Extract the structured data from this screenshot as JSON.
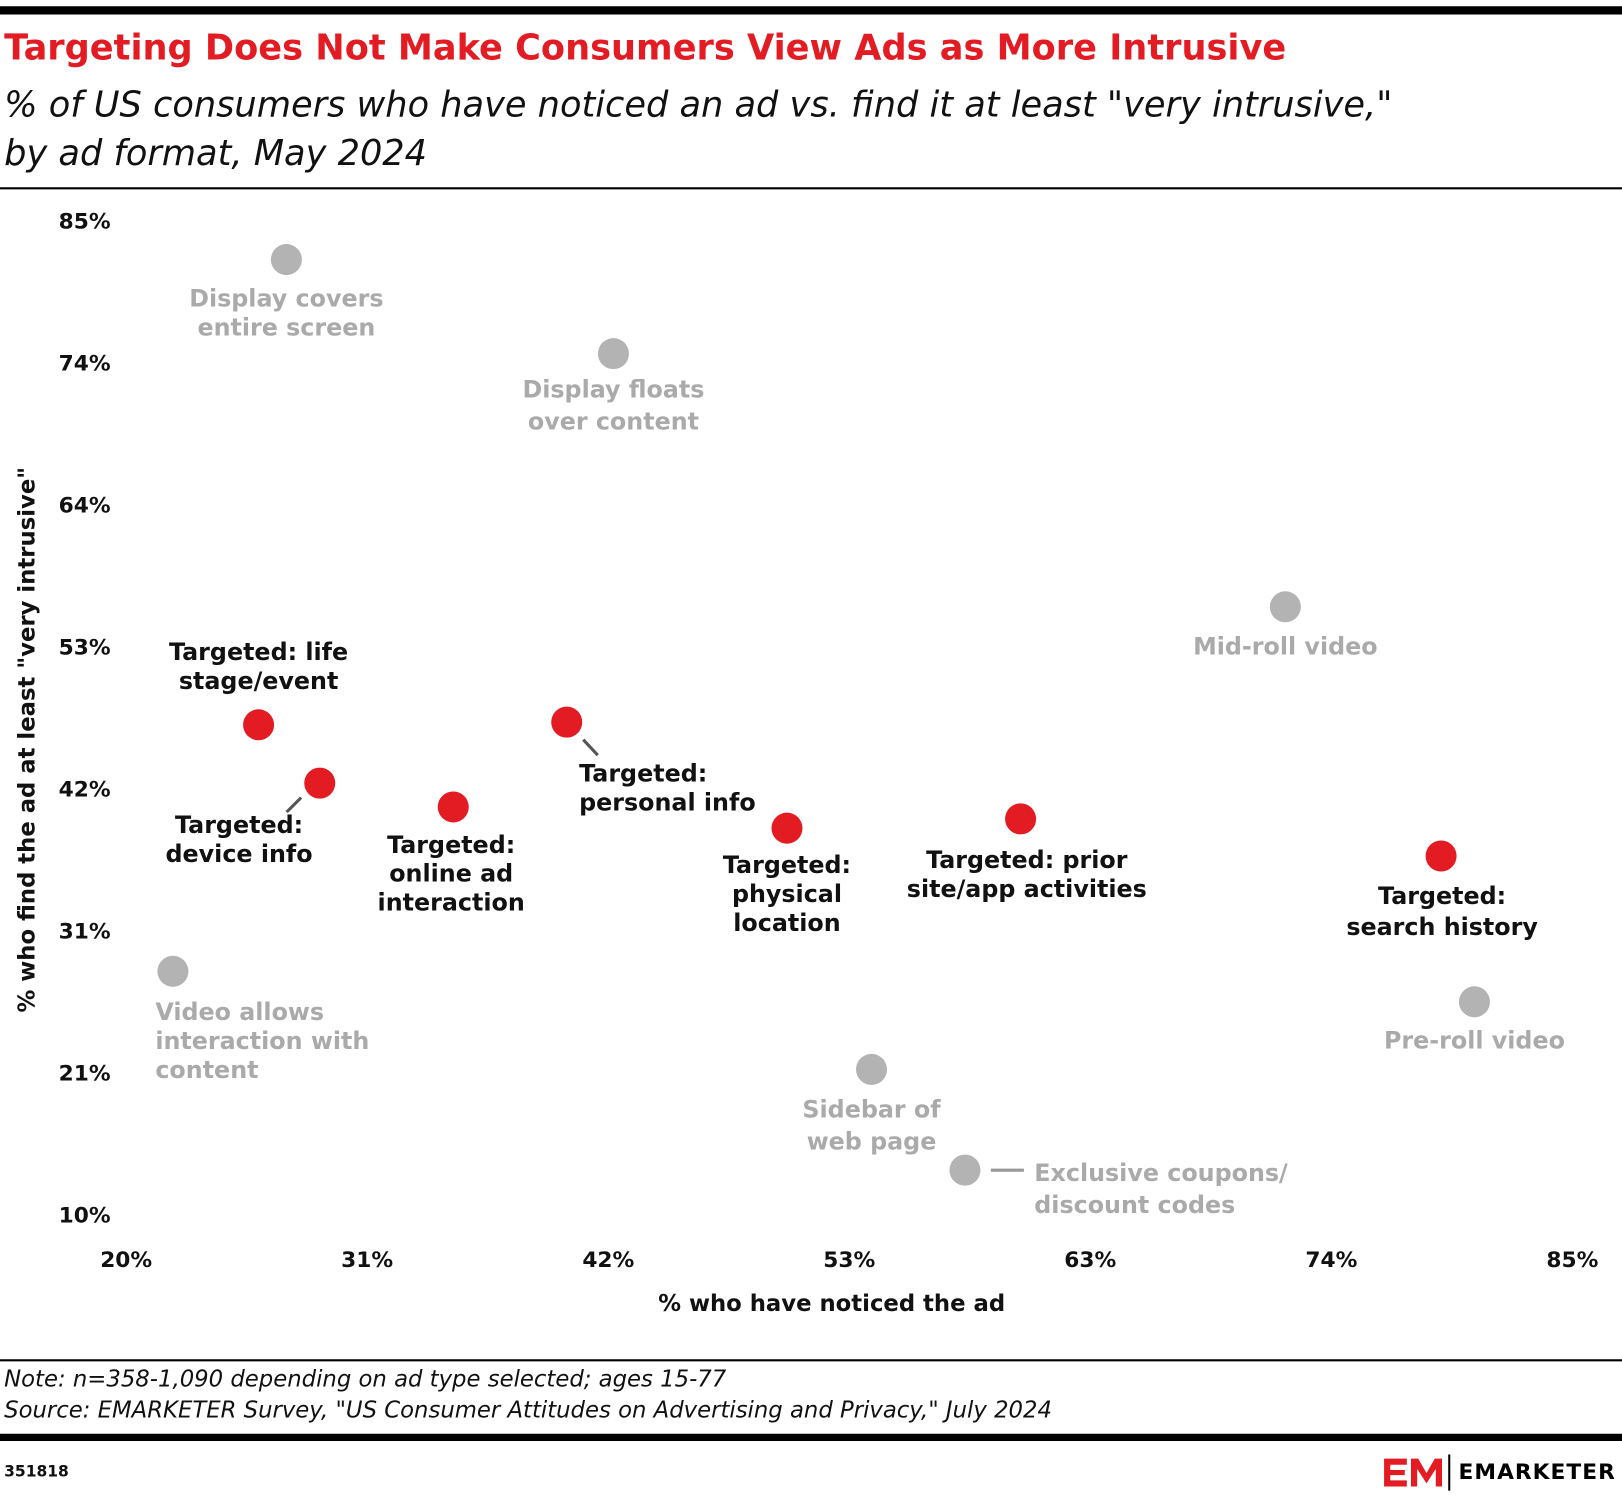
{
  "chart_data": {
    "type": "scatter",
    "title": "Targeting Does Not Make Consumers View Ads as More Intrusive",
    "subtitle": [
      "% of US consumers who have noticed an ad vs. find it at least \"very intrusive,\"",
      "by ad format, May 2024"
    ],
    "x_label": "% who have noticed the ad",
    "y_label": "% who find the ad at least \"very intrusive\"",
    "xlim": [
      20,
      85
    ],
    "xticks": [
      {
        "value": 20,
        "label": "20%"
      },
      {
        "value": 30.83,
        "label": "31%"
      },
      {
        "value": 41.67,
        "label": "42%"
      },
      {
        "value": 52.5,
        "label": "53%"
      },
      {
        "value": 63.33,
        "label": "63%"
      },
      {
        "value": 74.17,
        "label": "74%"
      },
      {
        "value": 85,
        "label": "85%"
      }
    ],
    "ylim": [
      10,
      85
    ],
    "yticks": [
      {
        "value": 10,
        "label": "10%"
      },
      {
        "value": 20.71,
        "label": "21%"
      },
      {
        "value": 31.43,
        "label": "31%"
      },
      {
        "value": 42.14,
        "label": "42%"
      },
      {
        "value": 52.86,
        "label": "53%"
      },
      {
        "value": 63.57,
        "label": "64%"
      },
      {
        "value": 74.29,
        "label": "74%"
      },
      {
        "value": 85,
        "label": "85%"
      }
    ],
    "points": [
      {
        "label": [
          "Display covers",
          "entire screen"
        ],
        "x": 27.2,
        "y": 82.2,
        "color": "#b3b3b3"
      },
      {
        "label": [
          "Display floats",
          "over content"
        ],
        "x": 41.9,
        "y": 75.1,
        "color": "#b3b3b3"
      },
      {
        "label": [
          "Mid-roll video"
        ],
        "x": 72.1,
        "y": 56.0,
        "color": "#b3b3b3"
      },
      {
        "label": [
          "Video allows",
          "interaction with",
          "content"
        ],
        "x": 22.1,
        "y": 28.5,
        "color": "#b3b3b3"
      },
      {
        "label": [
          "Sidebar of",
          "web page"
        ],
        "x": 53.5,
        "y": 21.1,
        "color": "#b3b3b3"
      },
      {
        "label": [
          "Exclusive coupons/",
          "discount codes"
        ],
        "x": 57.7,
        "y": 13.5,
        "color": "#b3b3b3"
      },
      {
        "label": [
          "Pre-roll video"
        ],
        "x": 80.6,
        "y": 26.2,
        "color": "#b3b3b3"
      },
      {
        "label": [
          "Targeted: life",
          "stage/event"
        ],
        "x": 25.95,
        "y": 47.1,
        "color": "#e31b23"
      },
      {
        "label": [
          "Targeted:",
          "device info"
        ],
        "x": 28.7,
        "y": 42.7,
        "color": "#e31b23"
      },
      {
        "label": [
          "Targeted:",
          "online ad",
          "interaction"
        ],
        "x": 34.7,
        "y": 40.9,
        "color": "#e31b23"
      },
      {
        "label": [
          "Targeted:",
          "personal info"
        ],
        "x": 39.8,
        "y": 47.3,
        "color": "#e31b23"
      },
      {
        "label": [
          "Targeted:",
          "physical",
          "location"
        ],
        "x": 49.7,
        "y": 39.3,
        "color": "#e31b23"
      },
      {
        "label": [
          "Targeted: prior",
          "site/app activities"
        ],
        "x": 60.2,
        "y": 40.0,
        "color": "#e31b23"
      },
      {
        "label": [
          "Targeted:",
          "search history"
        ],
        "x": 79.1,
        "y": 37.2,
        "color": "#e31b23"
      }
    ],
    "note": "Note: n=358-1,090 depending on ad type selected; ages 15-77",
    "source": "Source: EMARKETER Survey, \"US Consumer Attitudes on Advertising and Privacy,\" July 2024",
    "chart_id": "351818",
    "brand": "EMARKETER"
  }
}
